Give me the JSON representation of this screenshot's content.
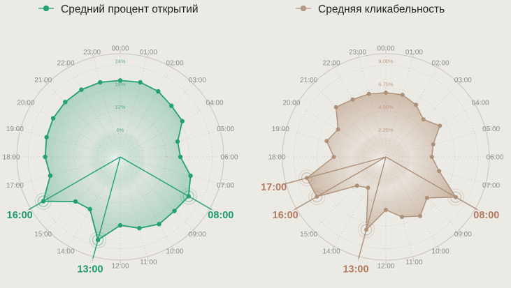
{
  "page": {
    "background": "#eceae4",
    "grid_color": "#c7c4bd",
    "grid_dotted_color": "#cbc8c1",
    "hour_label_color": "#8b8b8b"
  },
  "legend": {
    "items": [
      {
        "label": "Средний процент открытий",
        "color": "#23a076"
      },
      {
        "label": "Средняя кликабельность",
        "color": "#b29a84"
      }
    ]
  },
  "chart_data": [
    {
      "type": "line",
      "subtype": "polar-radar-24h",
      "name": "Средний процент открытий",
      "unit": "%",
      "categories": [
        "00:00",
        "01:00",
        "02:00",
        "03:00",
        "04:00",
        "05:00",
        "06:00",
        "07:00",
        "08:00",
        "09:00",
        "10:00",
        "11:00",
        "12:00",
        "13:00",
        "14:00",
        "15:00",
        "16:00",
        "17:00",
        "18:00",
        "19:00",
        "20:00",
        "21:00",
        "22:00",
        "23:00"
      ],
      "values": [
        20.0,
        20.2,
        19.8,
        18.9,
        18.7,
        15.5,
        15.7,
        19.0,
        20.6,
        20.0,
        20.3,
        19.3,
        17.9,
        22.5,
        15.8,
        16.5,
        23.2,
        18.9,
        19.6,
        19.9,
        20.2,
        20.3,
        20.3,
        20.2
      ],
      "highlighted": [
        "08:00",
        "13:00",
        "16:00"
      ],
      "radial_ticks": [
        {
          "value": 6,
          "label": "6%"
        },
        {
          "value": 12,
          "label": "12%"
        },
        {
          "value": 18,
          "label": "18%"
        },
        {
          "value": 24,
          "label": "24%"
        }
      ],
      "ylim": [
        0,
        27
      ],
      "angle_axis": "hours clockwise from top",
      "colors": {
        "line": "#23a076",
        "fill": "#23a076",
        "tick_label": "#57ad8e",
        "highlight_label": "#1b9b71"
      }
    },
    {
      "type": "line",
      "subtype": "polar-radar-24h",
      "name": "Средняя кликабельность",
      "unit": "%",
      "categories": [
        "00:00",
        "01:00",
        "02:00",
        "03:00",
        "04:00",
        "05:00",
        "06:00",
        "07:00",
        "08:00",
        "09:00",
        "10:00",
        "11:00",
        "12:00",
        "13:00",
        "14:00",
        "15:00",
        "16:00",
        "17:00",
        "18:00",
        "19:00",
        "20:00",
        "21:00",
        "22:00",
        "23:00"
      ],
      "values": [
        6.3,
        6.3,
        5.9,
        5.2,
        6.1,
        4.8,
        4.5,
        5.4,
        7.9,
        5.7,
        6.7,
        6.1,
        5.2,
        7.4,
        3.5,
        4.0,
        7.8,
        8.0,
        5.1,
        6.0,
        5.4,
        6.9,
        6.5,
        6.4
      ],
      "highlighted": [
        "08:00",
        "13:00",
        "16:00",
        "17:00"
      ],
      "radial_ticks": [
        {
          "value": 2.25,
          "label": "2.25%"
        },
        {
          "value": 4.5,
          "label": "4.50%"
        },
        {
          "value": 6.75,
          "label": "6.75%"
        },
        {
          "value": 9,
          "label": "9.00%"
        }
      ],
      "ylim": [
        0,
        10.125
      ],
      "angle_axis": "hours clockwise from top",
      "colors": {
        "line": "#ad9078",
        "fill": "#a67c5c",
        "tick_label": "#c79682",
        "highlight_label": "#b17b5f"
      }
    }
  ]
}
